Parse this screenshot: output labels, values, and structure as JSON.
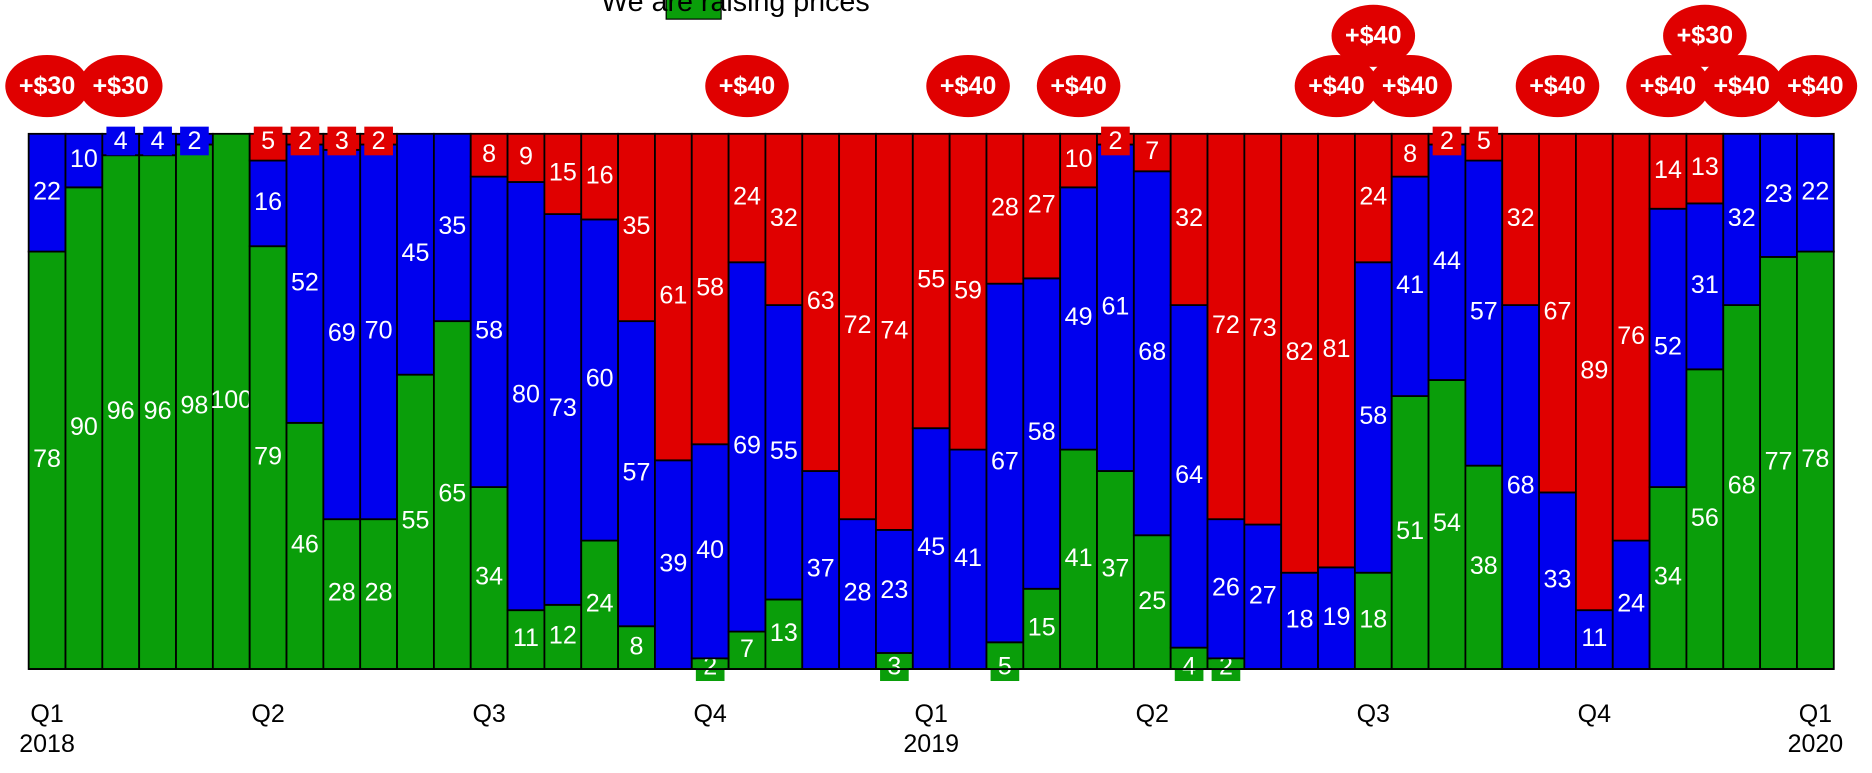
{
  "chart_data": {
    "type": "stacked_bar",
    "categories": [
      "Q1\n2018",
      null,
      null,
      null,
      null,
      null,
      "Q2",
      null,
      null,
      null,
      null,
      null,
      "Q3",
      null,
      null,
      null,
      null,
      null,
      "Q4",
      null,
      null,
      null,
      null,
      null,
      "Q1\n2019",
      null,
      null,
      null,
      null,
      null,
      "Q2",
      null,
      null,
      null,
      null,
      null,
      "Q3",
      null,
      null,
      null,
      null,
      null,
      "Q4",
      null,
      null,
      null,
      null,
      null,
      "Q1\n2020"
    ],
    "series": [
      {
        "name": "We are raising prices",
        "color": "#0a9e0a",
        "values": [
          78,
          90,
          96,
          96,
          98,
          100,
          79,
          46,
          28,
          28,
          55,
          65,
          34,
          11,
          12,
          24,
          8,
          0,
          2,
          7,
          13,
          0,
          0,
          3,
          0,
          0,
          5,
          15,
          41,
          37,
          25,
          4,
          2,
          0,
          0,
          0,
          18,
          51,
          54,
          38,
          0,
          0,
          0,
          0,
          34,
          56,
          68,
          77,
          78
        ]
      },
      {
        "color": "#0000ee",
        "values": [
          22,
          10,
          4,
          4,
          2,
          0,
          16,
          52,
          69,
          70,
          45,
          35,
          58,
          80,
          73,
          60,
          57,
          39,
          40,
          69,
          55,
          37,
          28,
          23,
          45,
          41,
          67,
          58,
          49,
          61,
          68,
          64,
          26,
          27,
          18,
          19,
          58,
          41,
          44,
          57,
          68,
          33,
          11,
          24,
          52,
          31,
          32,
          23,
          22
        ]
      },
      {
        "color": "#e00000",
        "values": [
          0,
          0,
          0,
          0,
          0,
          0,
          5,
          2,
          3,
          2,
          0,
          0,
          8,
          9,
          15,
          16,
          35,
          61,
          58,
          24,
          32,
          63,
          72,
          74,
          55,
          59,
          28,
          27,
          10,
          2,
          7,
          32,
          72,
          73,
          82,
          81,
          24,
          8,
          2,
          5,
          32,
          67,
          89,
          76,
          14,
          13,
          0,
          0,
          0
        ]
      }
    ],
    "price_changes": [
      "+$30",
      null,
      "+$30",
      null,
      null,
      null,
      null,
      null,
      null,
      null,
      null,
      null,
      null,
      null,
      null,
      null,
      null,
      null,
      null,
      "+$40",
      null,
      null,
      null,
      null,
      null,
      "+$40",
      null,
      null,
      "+$40",
      null,
      null,
      null,
      null,
      null,
      null,
      "+$40",
      "+$40",
      "+$40",
      null,
      null,
      null,
      "+$40",
      null,
      null,
      "+$40",
      "+$30",
      "+$40",
      null,
      "+$40"
    ],
    "ylim": [
      0,
      100
    ]
  }
}
